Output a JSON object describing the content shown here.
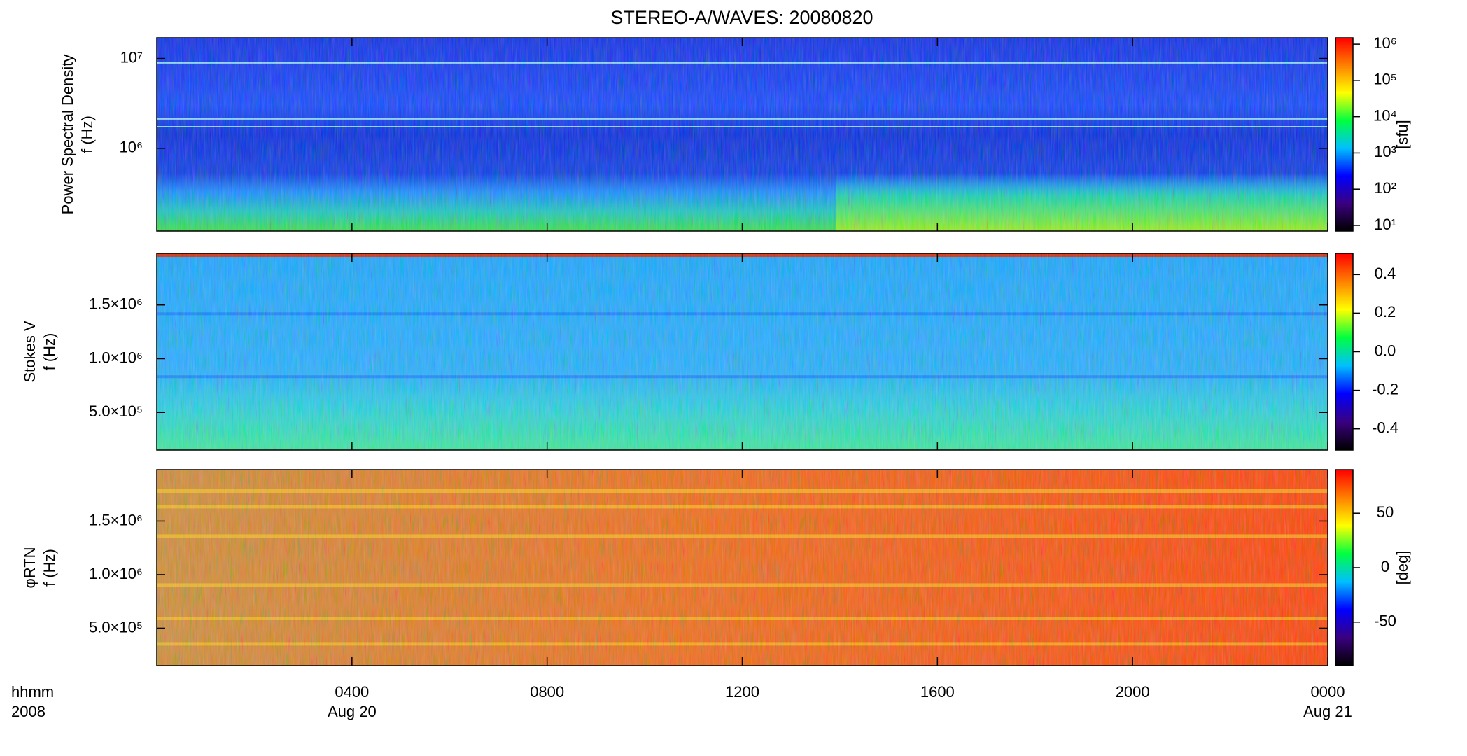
{
  "chart_data": [
    {
      "type": "heatmap",
      "title": "STEREO-A/WAVES: 20080820",
      "ylabel": [
        "Power Spectral Density",
        "f (Hz)"
      ],
      "ylog": true,
      "ylim": [
        120000,
        17000000
      ],
      "yticks": [
        {
          "value": 1000000,
          "label": "10⁶"
        },
        {
          "value": 10000000,
          "label": "10⁷"
        }
      ],
      "colorbar": {
        "log": true,
        "lim": [
          7,
          1500000
        ],
        "label": "[sfu]",
        "ticks": [
          {
            "value": 10,
            "label": "10¹"
          },
          {
            "value": 100,
            "label": "10²"
          },
          {
            "value": 1000,
            "label": "10³"
          },
          {
            "value": 10000,
            "label": "10⁴"
          },
          {
            "value": 100000,
            "label": "10⁵"
          },
          {
            "value": 1000000,
            "label": "10⁶"
          }
        ]
      },
      "colormap": [
        "#000000",
        "#3a0080",
        "#0000ff",
        "#00c0ff",
        "#00ff40",
        "#ffff00",
        "#ff8000",
        "#ff0000"
      ]
    },
    {
      "type": "heatmap",
      "ylabel": [
        "Stokes V",
        "f (Hz)"
      ],
      "ylog": false,
      "ylim": [
        150000,
        1980000
      ],
      "yticks": [
        {
          "value": 500000,
          "label": "5.0×10⁵"
        },
        {
          "value": 1000000,
          "label": "1.0×10⁶"
        },
        {
          "value": 1500000,
          "label": "1.5×10⁶"
        }
      ],
      "colorbar": {
        "log": false,
        "lim": [
          -0.51,
          0.51
        ],
        "ticks": [
          -0.4,
          -0.2,
          {
            "value": 0,
            "label": "0.0"
          },
          0.2,
          0.4
        ]
      },
      "colormap": [
        "#000000",
        "#3a0080",
        "#0000ff",
        "#00c0ff",
        "#00ff40",
        "#ffff00",
        "#ff8000",
        "#ff0000"
      ]
    },
    {
      "type": "heatmap",
      "ylabel": [
        "φRTN",
        "f (Hz)"
      ],
      "ylog": false,
      "ylim": [
        150000,
        1980000
      ],
      "yticks": [
        {
          "value": 500000,
          "label": "5.0×10⁵"
        },
        {
          "value": 1000000,
          "label": "1.0×10⁶"
        },
        {
          "value": 1500000,
          "label": "1.5×10⁶"
        }
      ],
      "colorbar": {
        "log": false,
        "lim": [
          -90,
          90
        ],
        "label": "[deg]",
        "ticks": [
          -50,
          0,
          50
        ]
      },
      "colormap": [
        "#000000",
        "#3a0080",
        "#0000ff",
        "#00c0ff",
        "#00ff40",
        "#ffff00",
        "#ff8000",
        "#ff0000"
      ],
      "xlabel": [
        "hhmm",
        "2008"
      ],
      "xlim": [
        0,
        24
      ],
      "xticks": [
        {
          "value": 4,
          "label": "0400"
        },
        {
          "value": 8,
          "label": "0800"
        },
        {
          "value": 12,
          "label": "1200"
        },
        {
          "value": 16,
          "label": "1600"
        },
        {
          "value": 20,
          "label": "2000"
        },
        {
          "value": 24,
          "label": "0000"
        }
      ],
      "date_labels": [
        {
          "value": 4,
          "label": "Aug 20"
        },
        {
          "value": 24,
          "label": "Aug 21"
        }
      ]
    }
  ]
}
